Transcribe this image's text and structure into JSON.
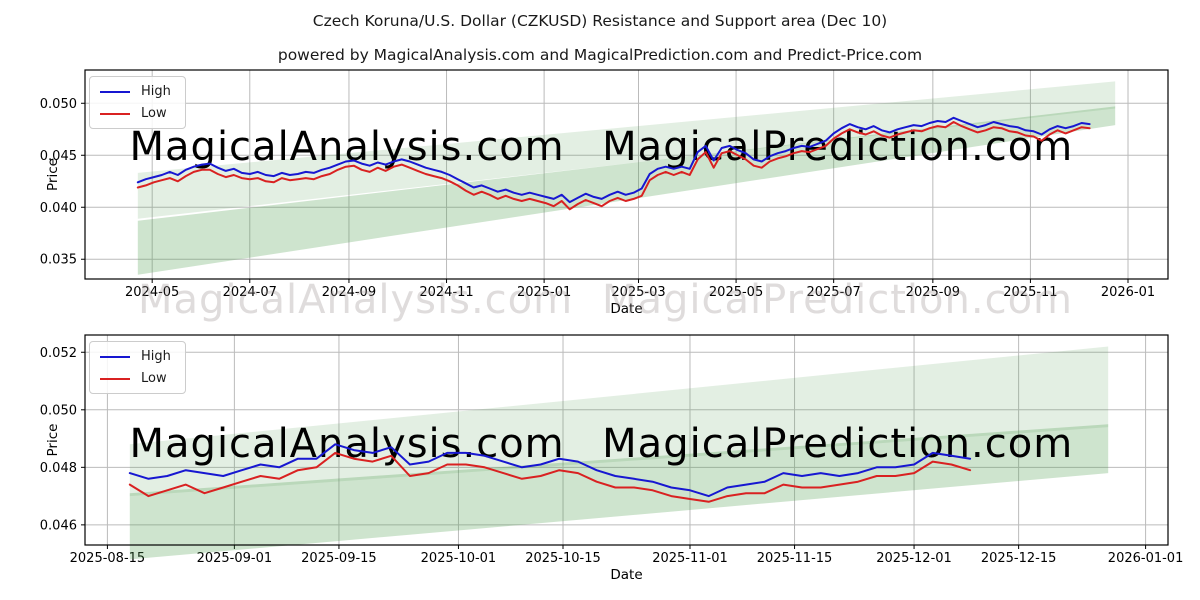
{
  "title": "Czech Koruna/U.S. Dollar (CZKUSD) Resistance and Support area (Dec 10)",
  "subtitle": "powered by MagicalAnalysis.com and MagicalPrediction.com and Predict-Price.com",
  "watermarks": {
    "left": "MagicalAnalysis.com",
    "right": "MagicalPrediction.com"
  },
  "colors": {
    "high_line": "#1717d1",
    "low_line": "#d92121",
    "band_green": "#4f9d50",
    "grid": "#bbbbbb",
    "axis": "#000000",
    "watermark": "rgba(150,138,138,0.28)"
  },
  "chart_data": [
    {
      "type": "line",
      "name": "daily",
      "xlabel": "Date",
      "ylabel": "Price",
      "xlim": [
        "2024-03-20",
        "2026-01-26"
      ],
      "ylim": [
        0.0331,
        0.0532
      ],
      "grid": true,
      "legend_position": "upper left",
      "xticks": [
        {
          "v": "2024-05-01",
          "label": "2024-05"
        },
        {
          "v": "2024-07-01",
          "label": "2024-07"
        },
        {
          "v": "2024-09-01",
          "label": "2024-09"
        },
        {
          "v": "2024-11-01",
          "label": "2024-11"
        },
        {
          "v": "2025-01-01",
          "label": "2025-01"
        },
        {
          "v": "2025-03-01",
          "label": "2025-03"
        },
        {
          "v": "2025-05-01",
          "label": "2025-05"
        },
        {
          "v": "2025-07-01",
          "label": "2025-07"
        },
        {
          "v": "2025-09-01",
          "label": "2025-09"
        },
        {
          "v": "2025-11-01",
          "label": "2025-11"
        },
        {
          "v": "2026-01-01",
          "label": "2026-01"
        }
      ],
      "yticks": [
        {
          "v": 0.035,
          "label": "0.035"
        },
        {
          "v": 0.04,
          "label": "0.040"
        },
        {
          "v": 0.045,
          "label": "0.045"
        },
        {
          "v": 0.05,
          "label": "0.050"
        }
      ],
      "bands": [
        {
          "name": "support-area",
          "x": [
            "2024-04-22",
            "2025-12-24"
          ],
          "lower": [
            0.0335,
            0.0479
          ],
          "upper": [
            0.0387,
            0.0497
          ],
          "alpha": 0.28
        },
        {
          "name": "resistance-area",
          "x": [
            "2024-04-22",
            "2025-12-24"
          ],
          "lower": [
            0.0389,
            0.0495
          ],
          "upper": [
            0.0433,
            0.0521
          ],
          "alpha": 0.16
        }
      ],
      "x_start": "2024-04-22",
      "x_step_days": 5,
      "series": [
        {
          "name": "High",
          "color_key": "high_line",
          "values": [
            0.0424,
            0.0427,
            0.0429,
            0.0431,
            0.0434,
            0.0431,
            0.0436,
            0.0439,
            0.0441,
            0.0442,
            0.0438,
            0.0435,
            0.0437,
            0.0433,
            0.0432,
            0.0434,
            0.0431,
            0.043,
            0.0433,
            0.0431,
            0.0432,
            0.0434,
            0.0433,
            0.0436,
            0.0438,
            0.0441,
            0.0444,
            0.0445,
            0.0442,
            0.044,
            0.0443,
            0.0441,
            0.0444,
            0.0446,
            0.0444,
            0.0441,
            0.0438,
            0.0436,
            0.0434,
            0.0431,
            0.0427,
            0.0423,
            0.0419,
            0.0421,
            0.0418,
            0.0415,
            0.0417,
            0.0414,
            0.0412,
            0.0414,
            0.0412,
            0.041,
            0.0408,
            0.0412,
            0.0405,
            0.0409,
            0.0413,
            0.041,
            0.0408,
            0.0412,
            0.0415,
            0.0412,
            0.0414,
            0.0418,
            0.0432,
            0.0437,
            0.0439,
            0.0437,
            0.0439,
            0.0437,
            0.0453,
            0.0459,
            0.0445,
            0.0457,
            0.0459,
            0.0455,
            0.0452,
            0.0446,
            0.0444,
            0.0449,
            0.0452,
            0.0454,
            0.0457,
            0.0459,
            0.0458,
            0.0461,
            0.0464,
            0.0471,
            0.0476,
            0.048,
            0.0477,
            0.0475,
            0.0478,
            0.0474,
            0.0472,
            0.0475,
            0.0477,
            0.0479,
            0.0478,
            0.0481,
            0.0483,
            0.0482,
            0.0486,
            0.0483,
            0.048,
            0.0477,
            0.0479,
            0.0482,
            0.048,
            0.0478,
            0.0477,
            0.0474,
            0.0473,
            0.047,
            0.0475,
            0.0478,
            0.0476,
            0.0478,
            0.0481,
            0.048
          ]
        },
        {
          "name": "Low",
          "color_key": "low_line",
          "values": [
            0.0419,
            0.0421,
            0.0424,
            0.0426,
            0.0428,
            0.0425,
            0.043,
            0.0434,
            0.0436,
            0.0436,
            0.0432,
            0.0429,
            0.0431,
            0.0428,
            0.0427,
            0.0428,
            0.0425,
            0.0424,
            0.0428,
            0.0426,
            0.0427,
            0.0428,
            0.0427,
            0.043,
            0.0432,
            0.0436,
            0.0439,
            0.044,
            0.0436,
            0.0434,
            0.0438,
            0.0435,
            0.0439,
            0.0441,
            0.0438,
            0.0435,
            0.0432,
            0.043,
            0.0428,
            0.0425,
            0.0421,
            0.0416,
            0.0412,
            0.0415,
            0.0412,
            0.0408,
            0.0411,
            0.0408,
            0.0406,
            0.0408,
            0.0406,
            0.0404,
            0.0401,
            0.0406,
            0.0398,
            0.0403,
            0.0407,
            0.0404,
            0.0401,
            0.0406,
            0.0409,
            0.0406,
            0.0408,
            0.0411,
            0.0426,
            0.0431,
            0.0434,
            0.0431,
            0.0434,
            0.0431,
            0.0446,
            0.0453,
            0.0438,
            0.0452,
            0.0454,
            0.045,
            0.0446,
            0.044,
            0.0438,
            0.0444,
            0.0447,
            0.0449,
            0.0452,
            0.0454,
            0.0453,
            0.0456,
            0.0459,
            0.0466,
            0.0471,
            0.0475,
            0.0472,
            0.047,
            0.0473,
            0.0469,
            0.0467,
            0.047,
            0.0472,
            0.0474,
            0.0473,
            0.0476,
            0.0478,
            0.0477,
            0.0482,
            0.0478,
            0.0475,
            0.0472,
            0.0474,
            0.0477,
            0.0476,
            0.0473,
            0.0472,
            0.0469,
            0.0468,
            0.0464,
            0.047,
            0.0474,
            0.0471,
            0.0474,
            0.0477,
            0.0476
          ]
        }
      ]
    },
    {
      "type": "line",
      "name": "recent-detail",
      "xlabel": "Date",
      "ylabel": "Price",
      "xlim": [
        "2025-08-12",
        "2026-01-04"
      ],
      "ylim": [
        0.0453,
        0.0526
      ],
      "grid": true,
      "legend_position": "upper left",
      "xticks": [
        {
          "v": "2025-08-15",
          "label": "2025-08-15"
        },
        {
          "v": "2025-09-01",
          "label": "2025-09-01"
        },
        {
          "v": "2025-09-15",
          "label": "2025-09-15"
        },
        {
          "v": "2025-10-01",
          "label": "2025-10-01"
        },
        {
          "v": "2025-10-15",
          "label": "2025-10-15"
        },
        {
          "v": "2025-11-01",
          "label": "2025-11-01"
        },
        {
          "v": "2025-11-15",
          "label": "2025-11-15"
        },
        {
          "v": "2025-12-01",
          "label": "2025-12-01"
        },
        {
          "v": "2025-12-15",
          "label": "2025-12-15"
        },
        {
          "v": "2026-01-01",
          "label": "2026-01-01"
        }
      ],
      "yticks": [
        {
          "v": 0.046,
          "label": "0.046"
        },
        {
          "v": 0.048,
          "label": "0.048"
        },
        {
          "v": 0.05,
          "label": "0.050"
        },
        {
          "v": 0.052,
          "label": "0.052"
        }
      ],
      "bands": [
        {
          "name": "support-area",
          "x": [
            "2025-08-18",
            "2025-12-27"
          ],
          "lower": [
            0.0448,
            0.0478
          ],
          "upper": [
            0.0471,
            0.0495
          ],
          "alpha": 0.28
        },
        {
          "name": "resistance-area",
          "x": [
            "2025-08-18",
            "2025-12-27"
          ],
          "lower": [
            0.047,
            0.0494
          ],
          "upper": [
            0.0488,
            0.0522
          ],
          "alpha": 0.16
        }
      ],
      "x_start": "2025-08-18",
      "x_step_days": 2.5,
      "series": [
        {
          "name": "High",
          "color_key": "high_line",
          "values": [
            0.0478,
            0.0476,
            0.0477,
            0.0479,
            0.0478,
            0.0477,
            0.0479,
            0.0481,
            0.048,
            0.0483,
            0.0483,
            0.0488,
            0.0486,
            0.0485,
            0.0487,
            0.0481,
            0.0482,
            0.0485,
            0.0485,
            0.0484,
            0.0482,
            0.048,
            0.0481,
            0.0483,
            0.0482,
            0.0479,
            0.0477,
            0.0476,
            0.0475,
            0.0473,
            0.0472,
            0.047,
            0.0473,
            0.0474,
            0.0475,
            0.0478,
            0.0477,
            0.0478,
            0.0477,
            0.0478,
            0.048,
            0.048,
            0.0481,
            0.0485,
            0.0484,
            0.0483
          ]
        },
        {
          "name": "Low",
          "color_key": "low_line",
          "values": [
            0.0474,
            0.047,
            0.0472,
            0.0474,
            0.0471,
            0.0473,
            0.0475,
            0.0477,
            0.0476,
            0.0479,
            0.048,
            0.0485,
            0.0483,
            0.0482,
            0.0484,
            0.0477,
            0.0478,
            0.0481,
            0.0481,
            0.048,
            0.0478,
            0.0476,
            0.0477,
            0.0479,
            0.0478,
            0.0475,
            0.0473,
            0.0473,
            0.0472,
            0.047,
            0.0469,
            0.0468,
            0.047,
            0.0471,
            0.0471,
            0.0474,
            0.0473,
            0.0473,
            0.0474,
            0.0475,
            0.0477,
            0.0477,
            0.0478,
            0.0482,
            0.0481,
            0.0479
          ]
        }
      ]
    }
  ]
}
